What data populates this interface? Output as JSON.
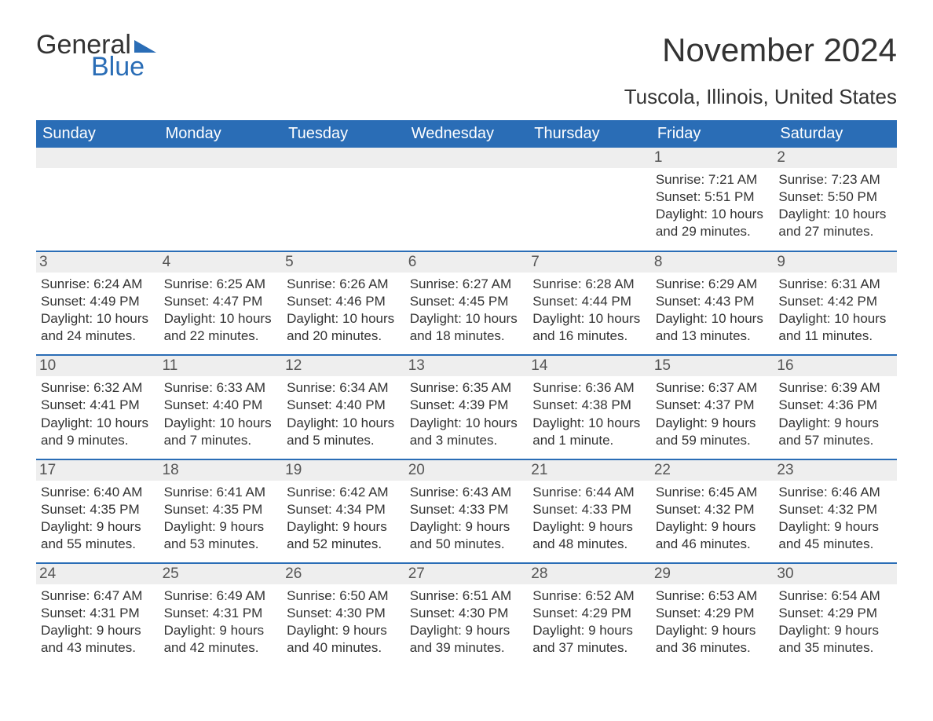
{
  "logo": {
    "text1": "General",
    "text2": "Blue",
    "iconColor": "#2a6db6"
  },
  "title": "November 2024",
  "location": "Tuscola, Illinois, United States",
  "colors": {
    "headerBg": "#2a6db6",
    "headerText": "#ffffff",
    "dayNumBg": "#eeeeee",
    "rowBorder": "#2a6db6",
    "bodyText": "#333333",
    "pageBg": "#ffffff"
  },
  "dayHeaders": [
    "Sunday",
    "Monday",
    "Tuesday",
    "Wednesday",
    "Thursday",
    "Friday",
    "Saturday"
  ],
  "weeks": [
    [
      {
        "num": "",
        "sunrise": "",
        "sunset": "",
        "daylight": ""
      },
      {
        "num": "",
        "sunrise": "",
        "sunset": "",
        "daylight": ""
      },
      {
        "num": "",
        "sunrise": "",
        "sunset": "",
        "daylight": ""
      },
      {
        "num": "",
        "sunrise": "",
        "sunset": "",
        "daylight": ""
      },
      {
        "num": "",
        "sunrise": "",
        "sunset": "",
        "daylight": ""
      },
      {
        "num": "1",
        "sunrise": "Sunrise: 7:21 AM",
        "sunset": "Sunset: 5:51 PM",
        "daylight": "Daylight: 10 hours and 29 minutes."
      },
      {
        "num": "2",
        "sunrise": "Sunrise: 7:23 AM",
        "sunset": "Sunset: 5:50 PM",
        "daylight": "Daylight: 10 hours and 27 minutes."
      }
    ],
    [
      {
        "num": "3",
        "sunrise": "Sunrise: 6:24 AM",
        "sunset": "Sunset: 4:49 PM",
        "daylight": "Daylight: 10 hours and 24 minutes."
      },
      {
        "num": "4",
        "sunrise": "Sunrise: 6:25 AM",
        "sunset": "Sunset: 4:47 PM",
        "daylight": "Daylight: 10 hours and 22 minutes."
      },
      {
        "num": "5",
        "sunrise": "Sunrise: 6:26 AM",
        "sunset": "Sunset: 4:46 PM",
        "daylight": "Daylight: 10 hours and 20 minutes."
      },
      {
        "num": "6",
        "sunrise": "Sunrise: 6:27 AM",
        "sunset": "Sunset: 4:45 PM",
        "daylight": "Daylight: 10 hours and 18 minutes."
      },
      {
        "num": "7",
        "sunrise": "Sunrise: 6:28 AM",
        "sunset": "Sunset: 4:44 PM",
        "daylight": "Daylight: 10 hours and 16 minutes."
      },
      {
        "num": "8",
        "sunrise": "Sunrise: 6:29 AM",
        "sunset": "Sunset: 4:43 PM",
        "daylight": "Daylight: 10 hours and 13 minutes."
      },
      {
        "num": "9",
        "sunrise": "Sunrise: 6:31 AM",
        "sunset": "Sunset: 4:42 PM",
        "daylight": "Daylight: 10 hours and 11 minutes."
      }
    ],
    [
      {
        "num": "10",
        "sunrise": "Sunrise: 6:32 AM",
        "sunset": "Sunset: 4:41 PM",
        "daylight": "Daylight: 10 hours and 9 minutes."
      },
      {
        "num": "11",
        "sunrise": "Sunrise: 6:33 AM",
        "sunset": "Sunset: 4:40 PM",
        "daylight": "Daylight: 10 hours and 7 minutes."
      },
      {
        "num": "12",
        "sunrise": "Sunrise: 6:34 AM",
        "sunset": "Sunset: 4:40 PM",
        "daylight": "Daylight: 10 hours and 5 minutes."
      },
      {
        "num": "13",
        "sunrise": "Sunrise: 6:35 AM",
        "sunset": "Sunset: 4:39 PM",
        "daylight": "Daylight: 10 hours and 3 minutes."
      },
      {
        "num": "14",
        "sunrise": "Sunrise: 6:36 AM",
        "sunset": "Sunset: 4:38 PM",
        "daylight": "Daylight: 10 hours and 1 minute."
      },
      {
        "num": "15",
        "sunrise": "Sunrise: 6:37 AM",
        "sunset": "Sunset: 4:37 PM",
        "daylight": "Daylight: 9 hours and 59 minutes."
      },
      {
        "num": "16",
        "sunrise": "Sunrise: 6:39 AM",
        "sunset": "Sunset: 4:36 PM",
        "daylight": "Daylight: 9 hours and 57 minutes."
      }
    ],
    [
      {
        "num": "17",
        "sunrise": "Sunrise: 6:40 AM",
        "sunset": "Sunset: 4:35 PM",
        "daylight": "Daylight: 9 hours and 55 minutes."
      },
      {
        "num": "18",
        "sunrise": "Sunrise: 6:41 AM",
        "sunset": "Sunset: 4:35 PM",
        "daylight": "Daylight: 9 hours and 53 minutes."
      },
      {
        "num": "19",
        "sunrise": "Sunrise: 6:42 AM",
        "sunset": "Sunset: 4:34 PM",
        "daylight": "Daylight: 9 hours and 52 minutes."
      },
      {
        "num": "20",
        "sunrise": "Sunrise: 6:43 AM",
        "sunset": "Sunset: 4:33 PM",
        "daylight": "Daylight: 9 hours and 50 minutes."
      },
      {
        "num": "21",
        "sunrise": "Sunrise: 6:44 AM",
        "sunset": "Sunset: 4:33 PM",
        "daylight": "Daylight: 9 hours and 48 minutes."
      },
      {
        "num": "22",
        "sunrise": "Sunrise: 6:45 AM",
        "sunset": "Sunset: 4:32 PM",
        "daylight": "Daylight: 9 hours and 46 minutes."
      },
      {
        "num": "23",
        "sunrise": "Sunrise: 6:46 AM",
        "sunset": "Sunset: 4:32 PM",
        "daylight": "Daylight: 9 hours and 45 minutes."
      }
    ],
    [
      {
        "num": "24",
        "sunrise": "Sunrise: 6:47 AM",
        "sunset": "Sunset: 4:31 PM",
        "daylight": "Daylight: 9 hours and 43 minutes."
      },
      {
        "num": "25",
        "sunrise": "Sunrise: 6:49 AM",
        "sunset": "Sunset: 4:31 PM",
        "daylight": "Daylight: 9 hours and 42 minutes."
      },
      {
        "num": "26",
        "sunrise": "Sunrise: 6:50 AM",
        "sunset": "Sunset: 4:30 PM",
        "daylight": "Daylight: 9 hours and 40 minutes."
      },
      {
        "num": "27",
        "sunrise": "Sunrise: 6:51 AM",
        "sunset": "Sunset: 4:30 PM",
        "daylight": "Daylight: 9 hours and 39 minutes."
      },
      {
        "num": "28",
        "sunrise": "Sunrise: 6:52 AM",
        "sunset": "Sunset: 4:29 PM",
        "daylight": "Daylight: 9 hours and 37 minutes."
      },
      {
        "num": "29",
        "sunrise": "Sunrise: 6:53 AM",
        "sunset": "Sunset: 4:29 PM",
        "daylight": "Daylight: 9 hours and 36 minutes."
      },
      {
        "num": "30",
        "sunrise": "Sunrise: 6:54 AM",
        "sunset": "Sunset: 4:29 PM",
        "daylight": "Daylight: 9 hours and 35 minutes."
      }
    ]
  ]
}
